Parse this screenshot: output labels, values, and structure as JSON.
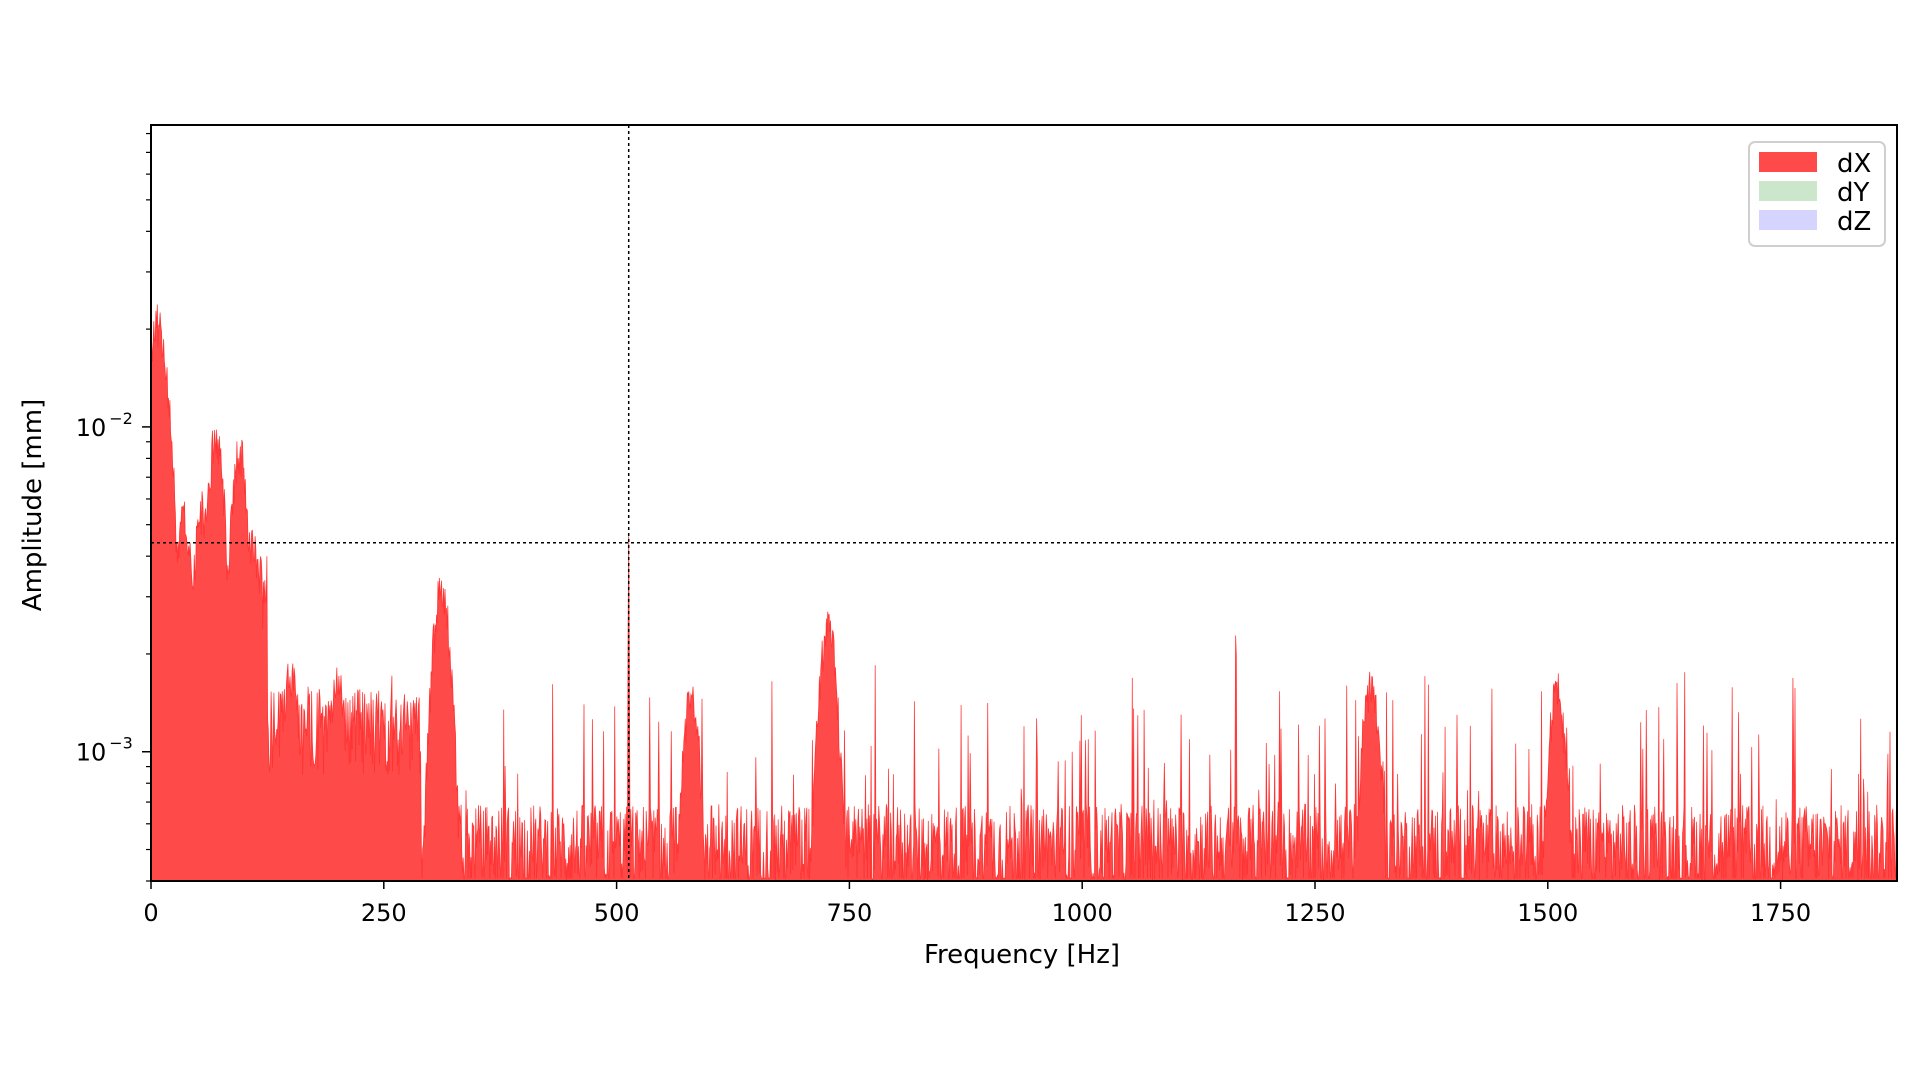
{
  "chart_data": {
    "type": "area",
    "title": "",
    "xlabel": "Frequency [Hz]",
    "ylabel": "Amplitude [mm]",
    "xlim": [
      0,
      1875
    ],
    "ylim": [
      0.0004,
      0.085
    ],
    "yscale": "log",
    "grid": false,
    "legend_position": "top-right",
    "x_ticks": [
      0,
      250,
      500,
      750,
      1000,
      1250,
      1500,
      1750
    ],
    "x_tick_labels": [
      "0",
      "250",
      "500",
      "750",
      "1000",
      "1250",
      "1500",
      "1750"
    ],
    "y_ticks": [
      {
        "value": 0.01,
        "base": "10",
        "exp": "−2"
      },
      {
        "value": 0.001,
        "base": "10",
        "exp": "−3"
      }
    ],
    "reference_lines": {
      "vertical_x": 513,
      "horizontal_y": 0.0044,
      "style": "dotted",
      "color": "#000000"
    },
    "series": [
      {
        "name": "dX",
        "color": "#ff2a2a",
        "alpha": 0.85,
        "baseline_noise_level": 0.0006,
        "peaks": [
          {
            "x": 7,
            "y": 0.022
          },
          {
            "x": 13,
            "y": 0.016
          },
          {
            "x": 20,
            "y": 0.006
          },
          {
            "x": 35,
            "y": 0.0055
          },
          {
            "x": 55,
            "y": 0.0058
          },
          {
            "x": 70,
            "y": 0.0098
          },
          {
            "x": 95,
            "y": 0.0088
          },
          {
            "x": 110,
            "y": 0.0045
          },
          {
            "x": 150,
            "y": 0.0018
          },
          {
            "x": 200,
            "y": 0.0017
          },
          {
            "x": 312,
            "y": 0.0033
          },
          {
            "x": 513,
            "y": 0.0044
          },
          {
            "x": 580,
            "y": 0.0015
          },
          {
            "x": 727,
            "y": 0.0025
          },
          {
            "x": 1165,
            "y": 0.0026
          },
          {
            "x": 1310,
            "y": 0.0017
          },
          {
            "x": 1510,
            "y": 0.0016
          }
        ]
      },
      {
        "name": "dY",
        "color": "#a8d5a8",
        "alpha": 0.6,
        "peaks": []
      },
      {
        "name": "dZ",
        "color": "#b8b8ff",
        "alpha": 0.6,
        "peaks": []
      }
    ]
  }
}
